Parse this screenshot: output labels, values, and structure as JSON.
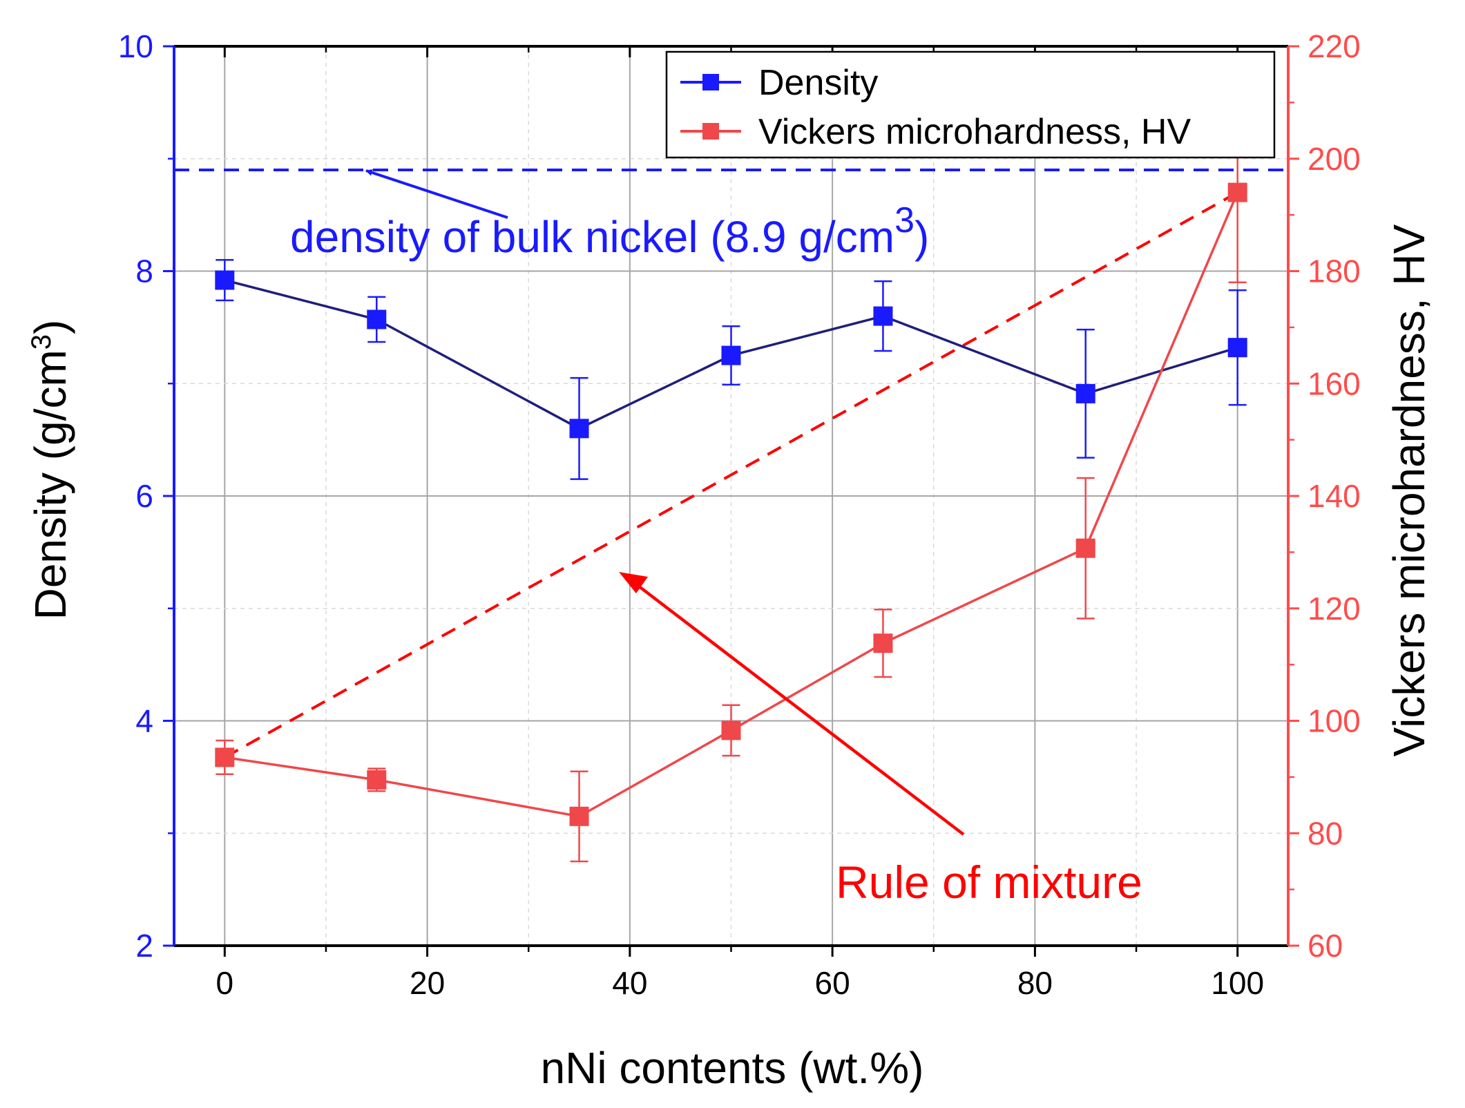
{
  "chart_data": {
    "type": "line",
    "title": "",
    "xlabel": "nNi contents (wt.%)",
    "ylabel_left": "Density (g/cm",
    "ylabel_left_sup": "3",
    "ylabel_left_close": ")",
    "ylabel_right": "Vickers microhardness, HV",
    "xlim": [
      -5,
      105
    ],
    "ylim_left": [
      2,
      10
    ],
    "ylim_right": [
      60,
      220
    ],
    "x_ticks": [
      0,
      20,
      40,
      60,
      80,
      100
    ],
    "x_tick_labels": [
      "0",
      "20",
      "40",
      "60",
      "80",
      "100"
    ],
    "y_left_ticks": [
      2,
      4,
      6,
      8,
      10
    ],
    "y_left_tick_labels": [
      "2",
      "4",
      "6",
      "8",
      "10"
    ],
    "y_right_ticks": [
      60,
      80,
      100,
      120,
      140,
      160,
      180,
      200,
      220
    ],
    "y_right_tick_labels": [
      "60",
      "80",
      "100",
      "120",
      "140",
      "160",
      "180",
      "200",
      "220"
    ],
    "grid": true,
    "legend_position": "top-right",
    "x": [
      0,
      15,
      35,
      50,
      65,
      85,
      100
    ],
    "series": [
      {
        "name": "Density",
        "axis": "left",
        "color": "#1a1aff",
        "line_color": "#1f1f7a",
        "values": [
          7.92,
          7.57,
          6.6,
          7.25,
          7.6,
          6.91,
          7.32
        ],
        "errors": [
          0.18,
          0.2,
          0.45,
          0.26,
          0.31,
          0.57,
          0.51
        ]
      },
      {
        "name": "Vickers microhardness, HV",
        "axis": "right",
        "color": "#f0474a",
        "line_color": "#f0474a",
        "values": [
          93.5,
          89.5,
          83,
          98.3,
          113.8,
          130.7,
          194
        ],
        "errors": [
          3,
          2,
          8,
          4.5,
          6,
          12.5,
          16
        ]
      }
    ],
    "reference_lines": [
      {
        "name": "density of bulk nickel",
        "axis": "left",
        "y": 8.9,
        "color": "#1a1aff",
        "style": "dashed"
      }
    ],
    "trend_lines": [
      {
        "name": "Rule of mixture",
        "axis": "right",
        "x": [
          0,
          100
        ],
        "y": [
          93.5,
          194
        ],
        "color": "#ff0000",
        "style": "dashed"
      }
    ],
    "annotations": [
      {
        "id": "bulk-nickel",
        "text": "density of bulk nickel (8.9 g/cm",
        "sup": "3",
        "close": ")",
        "color": "#1a1aff"
      },
      {
        "id": "rule-of-mixture",
        "text": "Rule of mixture",
        "color": "#ff0000"
      }
    ]
  }
}
